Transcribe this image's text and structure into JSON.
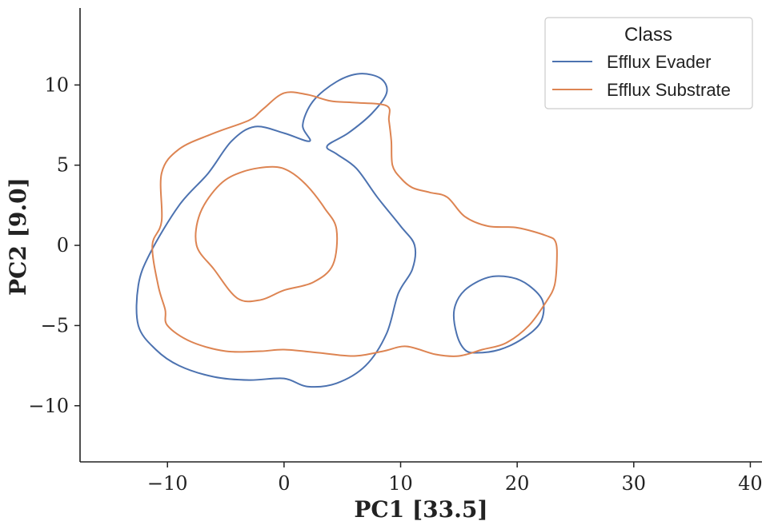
{
  "chart_data": {
    "type": "line",
    "title": "",
    "xlabel": "PC1 [33.5]",
    "ylabel": "PC2 [9.0]",
    "xlim": [
      -17.5,
      41
    ],
    "ylim": [
      -13.5,
      14.8
    ],
    "xticks": [
      -10,
      0,
      10,
      20,
      30,
      40
    ],
    "yticks": [
      -10,
      -5,
      0,
      5,
      10
    ],
    "xtick_labels": [
      "−10",
      "0",
      "10",
      "20",
      "30",
      "40"
    ],
    "ytick_labels": [
      "−10",
      "−5",
      "0",
      "5",
      "10"
    ],
    "grid": false,
    "legend": {
      "title": "Class",
      "position": "top-right",
      "entries": [
        "Efflux Evader",
        "Efflux Substrate"
      ]
    },
    "series": [
      {
        "name": "Efflux Evader",
        "color": "#4c72b0",
        "contours": [
          [
            [
              2.2,
              6.5
            ],
            [
              0,
              7
            ],
            [
              -2.5,
              7.4
            ],
            [
              -4.5,
              6.5
            ],
            [
              -6.5,
              4.5
            ],
            [
              -9,
              2.5
            ],
            [
              -11.5,
              -0.5
            ],
            [
              -12.5,
              -2.5
            ],
            [
              -12.5,
              -5
            ],
            [
              -11,
              -6.5
            ],
            [
              -9,
              -7.5
            ],
            [
              -6,
              -8.2
            ],
            [
              -3,
              -8.4
            ],
            [
              0,
              -8.3
            ],
            [
              2,
              -8.8
            ],
            [
              4.5,
              -8.6
            ],
            [
              7,
              -7.5
            ],
            [
              8.8,
              -5.5
            ],
            [
              9.8,
              -3
            ],
            [
              11,
              -1.5
            ],
            [
              11.2,
              0
            ],
            [
              10,
              1.2
            ],
            [
              8,
              3
            ],
            [
              6.2,
              4.8
            ],
            [
              4.5,
              5.7
            ],
            [
              3.7,
              6.2
            ],
            [
              5.5,
              7
            ],
            [
              7.5,
              8.2
            ],
            [
              8.8,
              9.5
            ],
            [
              8.3,
              10.4
            ],
            [
              6.5,
              10.7
            ],
            [
              4.5,
              10.2
            ],
            [
              2.5,
              9
            ],
            [
              1.6,
              7.5
            ],
            [
              2.2,
              6.5
            ]
          ],
          [
            [
              15.5,
              -6.5
            ],
            [
              14.8,
              -5.5
            ],
            [
              14.6,
              -4
            ],
            [
              15.5,
              -2.8
            ],
            [
              17.5,
              -2
            ],
            [
              19.5,
              -2
            ],
            [
              21,
              -2.5
            ],
            [
              22.2,
              -3.5
            ],
            [
              22,
              -4.8
            ],
            [
              20.5,
              -5.8
            ],
            [
              18.5,
              -6.5
            ],
            [
              16.5,
              -6.7
            ],
            [
              15.5,
              -6.5
            ]
          ]
        ]
      },
      {
        "name": "Efflux Substrate",
        "color": "#dd8452",
        "contours": [
          [
            [
              -7.5,
              0
            ],
            [
              -7.2,
              2
            ],
            [
              -5.5,
              3.8
            ],
            [
              -3.5,
              4.6
            ],
            [
              -1,
              4.9
            ],
            [
              0.5,
              4.6
            ],
            [
              2,
              3.7
            ],
            [
              3.5,
              2.3
            ],
            [
              4.5,
              1
            ],
            [
              4.2,
              -1.2
            ],
            [
              2.5,
              -2.3
            ],
            [
              0,
              -2.8
            ],
            [
              -2,
              -3.4
            ],
            [
              -4,
              -3.3
            ],
            [
              -6,
              -1.5
            ],
            [
              -7.5,
              0
            ]
          ],
          [
            [
              0,
              9.5
            ],
            [
              -1.8,
              8.5
            ],
            [
              -3,
              7.8
            ],
            [
              -6,
              7
            ],
            [
              -9,
              6
            ],
            [
              -10.5,
              4.5
            ],
            [
              -10.5,
              1.5
            ],
            [
              -11.3,
              0
            ],
            [
              -10.8,
              -2.5
            ],
            [
              -10.2,
              -4
            ],
            [
              -10,
              -5
            ],
            [
              -8,
              -6
            ],
            [
              -5,
              -6.6
            ],
            [
              -2,
              -6.6
            ],
            [
              0,
              -6.5
            ],
            [
              3,
              -6.7
            ],
            [
              6,
              -6.9
            ],
            [
              8.5,
              -6.6
            ],
            [
              10.5,
              -6.3
            ],
            [
              13,
              -6.8
            ],
            [
              15,
              -6.9
            ],
            [
              17,
              -6.5
            ],
            [
              19,
              -6.1
            ],
            [
              21,
              -5
            ],
            [
              22.5,
              -3.5
            ],
            [
              23.2,
              -2.5
            ],
            [
              23.4,
              -1
            ],
            [
              23.3,
              0.2
            ],
            [
              22.5,
              0.6
            ],
            [
              20,
              1.1
            ],
            [
              17.5,
              1.2
            ],
            [
              15.5,
              1.8
            ],
            [
              14,
              3
            ],
            [
              12.5,
              3.3
            ],
            [
              11,
              3.6
            ],
            [
              10,
              4.2
            ],
            [
              9.3,
              5
            ],
            [
              9.2,
              6.5
            ],
            [
              9,
              7.8
            ],
            [
              8.8,
              8.7
            ],
            [
              6,
              8.9
            ],
            [
              4,
              9
            ],
            [
              2,
              9.4
            ],
            [
              0,
              9.5
            ]
          ]
        ]
      }
    ]
  }
}
